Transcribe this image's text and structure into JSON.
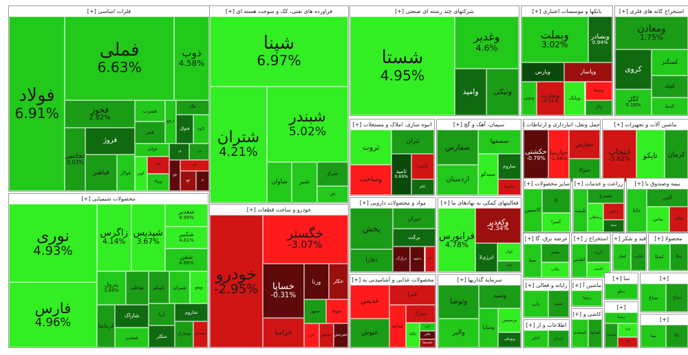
{
  "colors": {
    "up_strong": "#33ee22",
    "up": "#22c91b",
    "up_mid": "#1a9c16",
    "up_dark": "#106b10",
    "up_deep": "#0a4a0a",
    "down_strong": "#ff1b1b",
    "down": "#d11414",
    "down_mid": "#9c0f0f",
    "down_dark": "#5e0a0a"
  },
  "sectors": [
    {
      "label": "فلزات اساسی [+]",
      "stocks": [
        {
          "sym": "فولاد",
          "pct": "6.91%"
        },
        {
          "sym": "فملی",
          "pct": "6.63%"
        },
        {
          "sym": "ذوب",
          "pct": "4.58%"
        },
        {
          "sym": "فخوز",
          "pct": "2.82%"
        },
        {
          "sym": "فخاسی",
          "pct": "3.03%"
        },
        {
          "sym": "فروژ"
        },
        {
          "sym": "فباهنر"
        },
        {
          "sym": "فولاژ"
        },
        {
          "sym": "فسرب"
        },
        {
          "sym": "فجر"
        },
        {
          "sym": "ارفع"
        },
        {
          "sym": "فگ"
        },
        {
          "sym": "فنوال"
        },
        {
          "sym": "کاوه"
        },
        {
          "sym": "فولای"
        },
        {
          "sym": "کویر"
        },
        {
          "sym": "فم"
        },
        {
          "sym": "ونوکا"
        },
        {
          "sym": "ف"
        },
        {
          "sym": "ف"
        },
        {
          "sym": "فج"
        },
        {
          "sym": "فح"
        },
        {
          "sym": "فع"
        },
        {
          "sym": "م"
        }
      ]
    },
    {
      "label": "فراورده های نفتی، کک و سوخت هسته ای [+]",
      "stocks": [
        {
          "sym": "شپنا",
          "pct": "6.97%"
        },
        {
          "sym": "شتران",
          "pct": "4.21%"
        },
        {
          "sym": "شبندر",
          "pct": "5.02%"
        },
        {
          "sym": "شاوان"
        },
        {
          "sym": "شبر"
        },
        {
          "sym": "شراز"
        },
        {
          "sym": "ش"
        }
      ]
    },
    {
      "label": "شرکتهای چند رشته ای صنعتی [+]",
      "stocks": [
        {
          "sym": "شستا",
          "pct": "4.95%"
        },
        {
          "sym": "وغدیر",
          "pct": "4.6%"
        },
        {
          "sym": "وامید"
        },
        {
          "sym": "ونیکی"
        }
      ]
    },
    {
      "label": "بانکها و موسسات اعتباری [+]",
      "stocks": [
        {
          "sym": "وبملت",
          "pct": "3.02%"
        },
        {
          "sym": "وبصادر",
          "pct": "0.94%"
        },
        {
          "sym": "وپارس"
        },
        {
          "sym": "ونوین"
        },
        {
          "sym": "وتجارت",
          "pct": "-0.31%"
        },
        {
          "sym": "وپاسار"
        },
        {
          "sym": "وبانک"
        },
        {
          "sym": "وسینا"
        },
        {
          "sym": "وکار"
        }
      ]
    },
    {
      "label": "استخراج کانه های فلزی [+]",
      "stocks": [
        {
          "sym": "ومعادن",
          "pct": "1.75%"
        },
        {
          "sym": "کروی"
        },
        {
          "sym": "کگل",
          "pct": "0.18%"
        },
        {
          "sym": "کمنگنز"
        },
        {
          "sym": "کچاد"
        },
        {
          "sym": "کدما"
        }
      ]
    },
    {
      "label": "انبوه سازی، املاک و مستغلات [+]",
      "stocks": [
        {
          "sym": "ثروت"
        },
        {
          "sym": "وساخت"
        },
        {
          "sym": "ثتران"
        },
        {
          "sym": "ثامید",
          "pct": "0.69%"
        },
        {
          "sym": "ثاخت"
        },
        {
          "sym": "ثنام"
        }
      ]
    },
    {
      "label": "سیمان، آهک و گچ [+]",
      "stocks": [
        {
          "sym": "سفارس"
        },
        {
          "sym": "اردستان"
        },
        {
          "sym": "سصفها"
        },
        {
          "sym": "سیدکو"
        },
        {
          "sym": "ساروم"
        },
        {
          "sym": "سکرما"
        }
      ]
    },
    {
      "label": "حمل ونقل، انبارداری و ارتباطات [+]",
      "stocks": [
        {
          "sym": "حکشتی",
          "pct": "-0.79%"
        },
        {
          "sym": "حپارسا",
          "pct": "-1.06%"
        },
        {
          "sym": "حفارس"
        },
        {
          "sym": "حتوکا"
        }
      ]
    },
    {
      "label": "ماشین آلات و تجهیزات [+]",
      "stocks": [
        {
          "sym": "انتخاب",
          "pct": "-3.62%"
        },
        {
          "sym": "تاپکو"
        },
        {
          "sym": "کرمان"
        }
      ]
    },
    {
      "label": "محصولات شیمیایی [+]",
      "stocks": [
        {
          "sym": "نوری",
          "pct": "4.93%"
        },
        {
          "sym": "فارس",
          "pct": "4.96%"
        },
        {
          "sym": "زاگرس",
          "pct": "4.14%"
        },
        {
          "sym": "شپدیس",
          "pct": "3.67%"
        },
        {
          "sym": "شغدیر",
          "pct": "4.99%"
        },
        {
          "sym": "شکبیر",
          "pct": "4.81%"
        },
        {
          "sym": "شفن",
          "pct": "4.66%"
        },
        {
          "sym": "پترول",
          "pct": "3.89%"
        },
        {
          "sym": "بوعلی"
        },
        {
          "sym": "کرماشا"
        },
        {
          "sym": "شاراک"
        },
        {
          "sym": "شغدیر"
        },
        {
          "sym": "تاپیکو"
        },
        {
          "sym": "شیران"
        },
        {
          "sym": "ویتو"
        },
        {
          "sym": "آریا"
        },
        {
          "sym": "شکلر"
        },
        {
          "sym": "شاروم"
        },
        {
          "sym": "شخارک"
        },
        {
          "sym": "شصدف"
        }
      ]
    },
    {
      "label": "خودرو و ساخت قطعات [+]",
      "stocks": [
        {
          "sym": "خودرو",
          "pct": "-2.95%"
        },
        {
          "sym": "خگستر",
          "pct": "-3.07%"
        },
        {
          "sym": "خساپا",
          "pct": "-0.31%"
        },
        {
          "sym": "خزامیا"
        },
        {
          "sym": "ورنا"
        },
        {
          "sym": "خکار"
        },
        {
          "sym": "خمهر"
        },
        {
          "sym": "ختوقا"
        },
        {
          "sym": "خزر"
        },
        {
          "sym": "خمحور"
        },
        {
          "sym": "خچرخش"
        }
      ]
    },
    {
      "label": "مواد و محصولات دارویی [+]",
      "stocks": [
        {
          "sym": "پخش"
        },
        {
          "sym": "دفارا"
        },
        {
          "sym": "دیران"
        },
        {
          "sym": "برکت"
        },
        {
          "sym": "درازک"
        },
        {
          "sym": "دعبید"
        },
        {
          "sym": "دالبر"
        }
      ]
    },
    {
      "label": "فعالیتهای کمکی به نهادهای ما [+]",
      "stocks": [
        {
          "sym": "فرابورس",
          "pct": "4.78%"
        },
        {
          "sym": "وکغدیر",
          "pct": "-2.34%"
        },
        {
          "sym": "انرژی3"
        },
        {
          "sym": "اوان"
        },
        {
          "sym": "وکپار"
        }
      ]
    },
    {
      "label": "محصولات غذایی و آشامیدنی به [+]",
      "stocks": [
        {
          "sym": "غدیس"
        },
        {
          "sym": "غنوش"
        },
        {
          "sym": "غبرا"
        },
        {
          "sym": "غدانه"
        },
        {
          "sym": "غمارگ"
        },
        {
          "sym": "غگیلا"
        },
        {
          "sym": "غزر"
        },
        {
          "sym": "غالبر"
        },
        {
          "sym": "غشصفا"
        }
      ]
    },
    {
      "label": "سرمایه گذاریها [+]",
      "stocks": [
        {
          "sym": "وتوصا"
        },
        {
          "sym": "والبر"
        },
        {
          "sym": "وسپه"
        },
        {
          "sym": "وسایا"
        },
        {
          "sym": "برسیس"
        },
        {
          "sym": "وبوعلی"
        }
      ]
    },
    {
      "label": "سایر محصولات [+]",
      "stocks": [
        {
          "sym": "کاسپین"
        },
        {
          "sym": "کا"
        },
        {
          "sym": "کسرا"
        }
      ]
    },
    {
      "label": "زراعت و خدمات [+]",
      "stocks": [
        {
          "sym": "تلیسه"
        },
        {
          "sym": "سیمرغ"
        },
        {
          "sym": "زماهان"
        },
        {
          "sym": "زکوثر"
        },
        {
          "sym": "سپید"
        }
      ]
    },
    {
      "label": "بیمه وصندوق با [+]",
      "stocks": [
        {
          "sym": "دانا"
        },
        {
          "sym": "البرز"
        },
        {
          "sym": "بپاس"
        },
        {
          "sym": "اتکای"
        }
      ]
    },
    {
      "label": "عرضه برق، گا [+]",
      "stocks": [
        {
          "sym": "مپنا"
        },
        {
          "sym": "بفجر"
        },
        {
          "sym": "بکاب"
        }
      ]
    },
    {
      "label": "استخراج ز [+]",
      "stocks": [
        {
          "sym": "کطبس"
        },
        {
          "sym": "کرزه"
        },
        {
          "sym": "قاسم"
        }
      ]
    },
    {
      "label": "قند و شکر [+]",
      "stocks": [
        {
          "sym": "قچار"
        },
        {
          "sym": "قثابت"
        }
      ]
    },
    {
      "label": "محصولا [+]",
      "stocks": [
        {
          "sym": "کچکا"
        },
        {
          "sym": "چکا"
        }
      ]
    },
    {
      "label": "رایانه و فعالی [+]",
      "stocks": [
        {
          "sym": "تاپ"
        },
        {
          "sym": "سپ"
        }
      ]
    },
    {
      "label": "اطلاعات و ار [+]",
      "stocks": [
        {
          "sym": "اخابر"
        },
        {
          "sym": "اپرداز"
        }
      ]
    },
    {
      "label": "ماشین آ [+]",
      "stocks": [
        {
          "sym": "رمپنا"
        }
      ]
    },
    {
      "label": "سا [+]",
      "stocks": [
        {
          "sym": "ساو"
        }
      ]
    },
    {
      "label": "کاشی و [+]",
      "stocks": [
        {
          "sym": "کسعدی"
        },
        {
          "sym": "کساوه"
        }
      ]
    },
    {
      "label": "[+]",
      "stocks": [
        {
          "sym": "زمینا"
        },
        {
          "sym": "کماسه"
        },
        {
          "sym": "کاما"
        },
        {
          "sym": "کم"
        }
      ]
    },
    {
      "label": "[+]",
      "stocks": [
        {
          "sym": "ساغ"
        },
        {
          "sym": "ساج"
        }
      ]
    },
    {
      "label": "[+]",
      "stocks": [
        {
          "sym": "بما"
        },
        {
          "sym": "نکا"
        }
      ]
    }
  ]
}
